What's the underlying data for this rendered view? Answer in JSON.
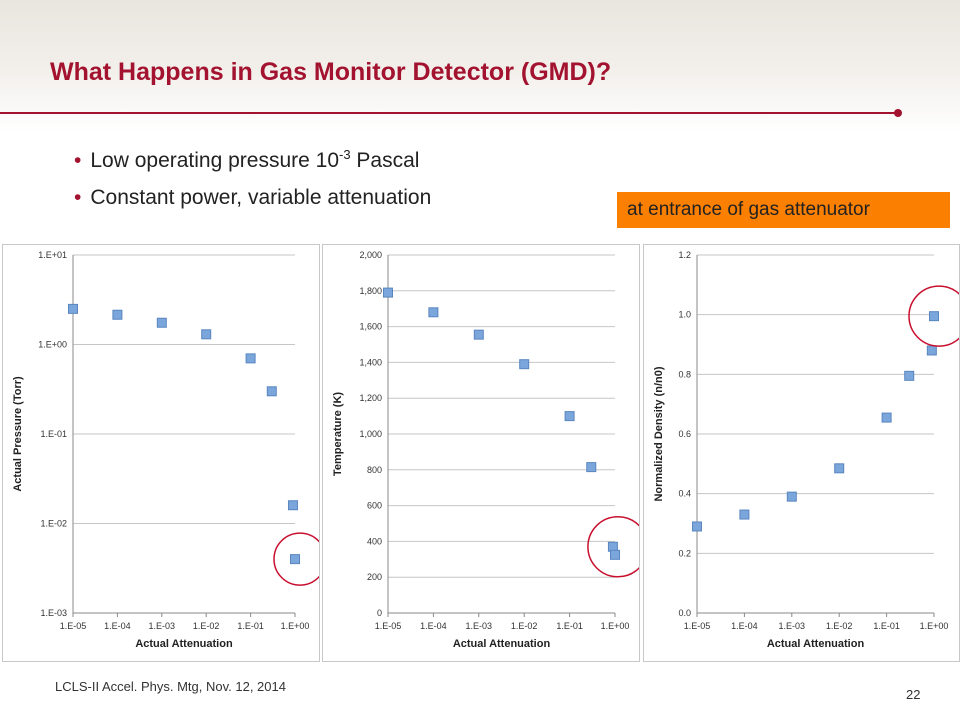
{
  "slide": {
    "title": "What Happens in Gas Monitor Detector (GMD)?",
    "bullets": [
      {
        "text": "Low operating pressure 10",
        "sup": "-3",
        "suffix": " Pascal"
      },
      {
        "text": "Constant power, variable attenuation"
      }
    ],
    "callout": "at entrance of gas attenuator",
    "footer": "LCLS-II Accel. Phys. Mtg, Nov. 12, 2014",
    "page_number": "22",
    "accent_color": "#a3122f",
    "callout_color": "#fb7f00"
  },
  "chart_data": [
    {
      "type": "scatter",
      "title": "",
      "xlabel": "Actual Attenuation",
      "ylabel": "Actual Pressure (Torr)",
      "x_scale": "log",
      "y_scale": "log",
      "x_ticks": [
        "1.E-05",
        "1.E-04",
        "1.E-03",
        "1.E-02",
        "1.E-01",
        "1.E+00"
      ],
      "y_ticks": [
        "1.E-03",
        "1.E-02",
        "1.E-01",
        "1.E+00",
        "1.E+01"
      ],
      "xlim": [
        1e-05,
        1
      ],
      "ylim": [
        0.001,
        10
      ],
      "points": [
        {
          "x": 1e-05,
          "y": 2.5
        },
        {
          "x": 0.0001,
          "y": 2.15
        },
        {
          "x": 0.001,
          "y": 1.75
        },
        {
          "x": 0.01,
          "y": 1.3
        },
        {
          "x": 0.1,
          "y": 0.7
        },
        {
          "x": 0.3,
          "y": 0.3
        },
        {
          "x": 0.9,
          "y": 0.016
        },
        {
          "x": 1.0,
          "y": 0.004
        }
      ],
      "highlight_index": 7,
      "grid": true,
      "marker_color": "#7aa6dc"
    },
    {
      "type": "scatter",
      "title": "",
      "xlabel": "Actual Attenuation",
      "ylabel": "Temperature (K)",
      "x_scale": "log",
      "y_scale": "linear",
      "x_ticks": [
        "1.E-05",
        "1.E-04",
        "1.E-03",
        "1.E-02",
        "1.E-01",
        "1.E+00"
      ],
      "y_ticks": [
        "0",
        "200",
        "400",
        "600",
        "800",
        "1,000",
        "1,200",
        "1,400",
        "1,600",
        "1,800",
        "2,000"
      ],
      "xlim": [
        1e-05,
        1
      ],
      "ylim": [
        0,
        2000
      ],
      "points": [
        {
          "x": 1e-05,
          "y": 1790
        },
        {
          "x": 0.0001,
          "y": 1680
        },
        {
          "x": 0.001,
          "y": 1555
        },
        {
          "x": 0.01,
          "y": 1390
        },
        {
          "x": 0.1,
          "y": 1100
        },
        {
          "x": 0.3,
          "y": 815
        },
        {
          "x": 0.9,
          "y": 370
        },
        {
          "x": 1.0,
          "y": 325
        }
      ],
      "highlight_index": 6,
      "grid": true,
      "marker_color": "#7aa6dc"
    },
    {
      "type": "scatter",
      "title": "",
      "xlabel": "Actual Attenuation",
      "ylabel": "Normalized Density (n/n0)",
      "x_scale": "log",
      "y_scale": "linear",
      "x_ticks": [
        "1.E-05",
        "1.E-04",
        "1.E-03",
        "1.E-02",
        "1.E-01",
        "1.E+00"
      ],
      "y_ticks": [
        "0.0",
        "0.2",
        "0.4",
        "0.6",
        "0.8",
        "1.0",
        "1.2"
      ],
      "xlim": [
        1e-05,
        1
      ],
      "ylim": [
        0,
        1.2
      ],
      "points": [
        {
          "x": 1e-05,
          "y": 0.29
        },
        {
          "x": 0.0001,
          "y": 0.33
        },
        {
          "x": 0.001,
          "y": 0.39
        },
        {
          "x": 0.01,
          "y": 0.485
        },
        {
          "x": 0.1,
          "y": 0.655
        },
        {
          "x": 0.3,
          "y": 0.795
        },
        {
          "x": 0.9,
          "y": 0.88
        },
        {
          "x": 1.0,
          "y": 0.995
        }
      ],
      "highlight_index": 7,
      "grid": true,
      "marker_color": "#7aa6dc"
    }
  ]
}
